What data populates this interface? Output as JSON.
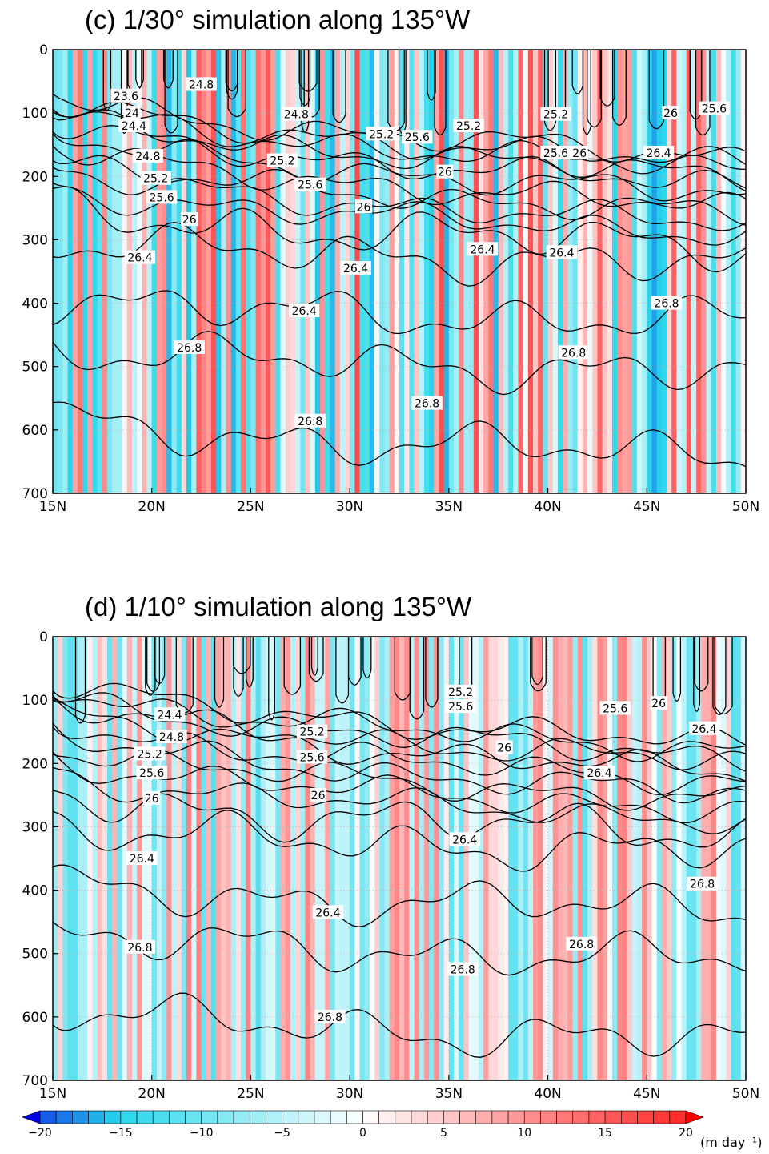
{
  "chart_data": [
    {
      "type": "heatmap",
      "title": "(c)   1/30° simulation along 135°W",
      "x_ticks": [
        "15N",
        "20N",
        "25N",
        "30N",
        "35N",
        "40N",
        "45N",
        "50N"
      ],
      "x_range": [
        15,
        50
      ],
      "y_ticks": [
        "0",
        "100",
        "200",
        "300",
        "400",
        "500",
        "600",
        "700"
      ],
      "y_range": [
        0,
        700
      ],
      "y_inverted": true,
      "colors": {
        "positive": "#ff1e1e",
        "negative": "#1edcf0",
        "contour": "#000000"
      },
      "contour_labels": [
        {
          "text": "23.6",
          "lat": 18.7,
          "depth": 73
        },
        {
          "text": "24",
          "lat": 19.0,
          "depth": 100
        },
        {
          "text": "24.4",
          "lat": 19.1,
          "depth": 120
        },
        {
          "text": "24.8",
          "lat": 22.5,
          "depth": 55
        },
        {
          "text": "24.8",
          "lat": 27.3,
          "depth": 102
        },
        {
          "text": "24.8",
          "lat": 19.8,
          "depth": 168
        },
        {
          "text": "25.2",
          "lat": 20.2,
          "depth": 203
        },
        {
          "text": "25.6",
          "lat": 20.5,
          "depth": 233
        },
        {
          "text": "26",
          "lat": 21.9,
          "depth": 268
        },
        {
          "text": "25.2",
          "lat": 26.6,
          "depth": 175
        },
        {
          "text": "25.6",
          "lat": 28.0,
          "depth": 213
        },
        {
          "text": "26",
          "lat": 30.7,
          "depth": 248
        },
        {
          "text": "26.4",
          "lat": 19.4,
          "depth": 328
        },
        {
          "text": "26.4",
          "lat": 30.3,
          "depth": 345
        },
        {
          "text": "26.4",
          "lat": 27.7,
          "depth": 412
        },
        {
          "text": "25.2",
          "lat": 31.6,
          "depth": 133
        },
        {
          "text": "25.6",
          "lat": 33.4,
          "depth": 138
        },
        {
          "text": "25.2",
          "lat": 36.0,
          "depth": 120
        },
        {
          "text": "26",
          "lat": 34.8,
          "depth": 193
        },
        {
          "text": "26.4",
          "lat": 36.7,
          "depth": 315
        },
        {
          "text": "25.2",
          "lat": 40.4,
          "depth": 102
        },
        {
          "text": "25.6",
          "lat": 40.4,
          "depth": 163
        },
        {
          "text": "26",
          "lat": 41.6,
          "depth": 163
        },
        {
          "text": "26.4",
          "lat": 40.7,
          "depth": 320
        },
        {
          "text": "26",
          "lat": 46.2,
          "depth": 100
        },
        {
          "text": "25.6",
          "lat": 48.4,
          "depth": 93
        },
        {
          "text": "26.4",
          "lat": 45.6,
          "depth": 163
        },
        {
          "text": "26.8",
          "lat": 46.0,
          "depth": 400
        },
        {
          "text": "26.8",
          "lat": 21.9,
          "depth": 470
        },
        {
          "text": "26.8",
          "lat": 41.3,
          "depth": 478
        },
        {
          "text": "26.8",
          "lat": 28.0,
          "depth": 586
        },
        {
          "text": "26.8",
          "lat": 33.9,
          "depth": 558
        }
      ]
    },
    {
      "type": "heatmap",
      "title": "(d)   1/10° simulation along 135°W",
      "x_ticks": [
        "15N",
        "20N",
        "25N",
        "30N",
        "35N",
        "40N",
        "45N",
        "50N"
      ],
      "x_range": [
        15,
        50
      ],
      "y_ticks": [
        "0",
        "100",
        "200",
        "300",
        "400",
        "500",
        "600",
        "700"
      ],
      "y_range": [
        0,
        700
      ],
      "y_inverted": true,
      "colors": {
        "positive": "#ff1e1e",
        "negative": "#1edcf0",
        "contour": "#000000"
      },
      "contour_labels": [
        {
          "text": "24.4",
          "lat": 20.9,
          "depth": 123
        },
        {
          "text": "24.8",
          "lat": 21.0,
          "depth": 158
        },
        {
          "text": "25.2",
          "lat": 19.9,
          "depth": 185
        },
        {
          "text": "25.6",
          "lat": 20.0,
          "depth": 215
        },
        {
          "text": "26",
          "lat": 20.0,
          "depth": 255
        },
        {
          "text": "25.2",
          "lat": 28.1,
          "depth": 150
        },
        {
          "text": "25.6",
          "lat": 28.1,
          "depth": 190
        },
        {
          "text": "26",
          "lat": 28.4,
          "depth": 250
        },
        {
          "text": "25.2",
          "lat": 35.6,
          "depth": 87
        },
        {
          "text": "25.6",
          "lat": 35.6,
          "depth": 110
        },
        {
          "text": "26",
          "lat": 37.8,
          "depth": 175
        },
        {
          "text": "26.4",
          "lat": 42.6,
          "depth": 215
        },
        {
          "text": "25.6",
          "lat": 43.4,
          "depth": 113
        },
        {
          "text": "26",
          "lat": 45.6,
          "depth": 105
        },
        {
          "text": "26.4",
          "lat": 47.9,
          "depth": 145
        },
        {
          "text": "26.4",
          "lat": 35.8,
          "depth": 320
        },
        {
          "text": "26.4",
          "lat": 19.5,
          "depth": 350
        },
        {
          "text": "26.4",
          "lat": 28.9,
          "depth": 435
        },
        {
          "text": "26.8",
          "lat": 47.8,
          "depth": 390
        },
        {
          "text": "26.8",
          "lat": 19.4,
          "depth": 490
        },
        {
          "text": "26.8",
          "lat": 41.7,
          "depth": 485
        },
        {
          "text": "26.8",
          "lat": 35.7,
          "depth": 525
        },
        {
          "text": "26.8",
          "lat": 29.0,
          "depth": 600
        }
      ]
    }
  ],
  "colorbar": {
    "ticks": [
      "−20",
      "−15",
      "−10",
      "−5",
      "0",
      "5",
      "10",
      "15",
      "20"
    ],
    "values": [
      -20,
      -15,
      -10,
      -5,
      0,
      5,
      10,
      15,
      20
    ],
    "unit": "(m day⁻¹)",
    "negative_color": "#0000e6",
    "positive_color": "#ff0000"
  }
}
